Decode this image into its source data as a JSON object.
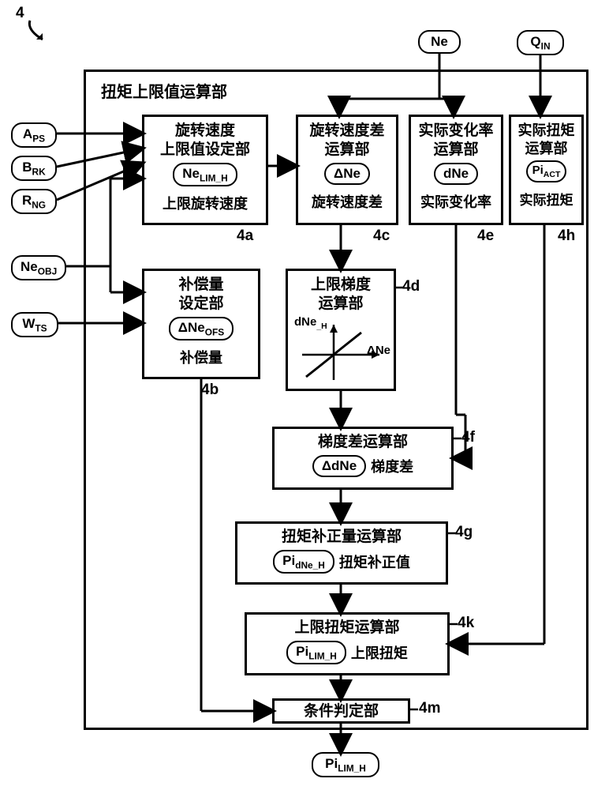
{
  "figNum": "4",
  "outerTitle": "扭矩上限值运算部",
  "inputs": {
    "Ne": "Ne",
    "Qin": "Q<sub>IN</sub>",
    "Aps": "A<sub>PS</sub>",
    "Brk": "B<sub>RK</sub>",
    "Rng": "R<sub>NG</sub>",
    "Neobj": "Ne<sub>OBJ</sub>",
    "Wts": "W<sub>TS</sub>"
  },
  "output": "Pi<sub>LIM_H</sub>",
  "blocks": {
    "b4a": {
      "title": "旋转速度\n上限值设定部",
      "var": "Ne<sub>LIM_H</sub>",
      "sub": "上限旋转速度",
      "ref": "4a"
    },
    "b4c": {
      "title": "旋转速度差\n运算部",
      "var": "ΔNe",
      "sub": "旋转速度差",
      "ref": "4c"
    },
    "b4e": {
      "title": "实际变化率\n运算部",
      "var": "dNe",
      "sub": "实际变化率",
      "ref": "4e"
    },
    "b4h": {
      "title": "实际扭矩\n运算部",
      "var": "Pi<sub>ACT</sub>",
      "sub": "实际扭矩",
      "ref": "4h"
    },
    "b4b": {
      "title": "补偿量\n设定部",
      "var": "ΔNe<sub>OFS</sub>",
      "sub": "补偿量",
      "ref": "4b"
    },
    "b4d": {
      "title": "上限梯度\n运算部",
      "ref": "4d",
      "yAxis": "dNe<sub>_H</sub>",
      "xAxis": "ΔNe"
    },
    "b4f": {
      "title": "梯度差运算部",
      "var": "ΔdNe",
      "sub": "梯度差",
      "ref": "4f"
    },
    "b4g": {
      "title": "扭矩补正量运算部",
      "var": "Pi<sub>dNe_H</sub>",
      "sub": "扭矩补正值",
      "ref": "4g"
    },
    "b4k": {
      "title": "上限扭矩运算部",
      "var": "Pi<sub>LIM_H</sub>",
      "sub": "上限扭矩",
      "ref": "4k"
    },
    "b4m": {
      "title": "条件判定部",
      "ref": "4m"
    }
  },
  "style": {
    "stroke": "#000",
    "strokeWidth": 3
  }
}
